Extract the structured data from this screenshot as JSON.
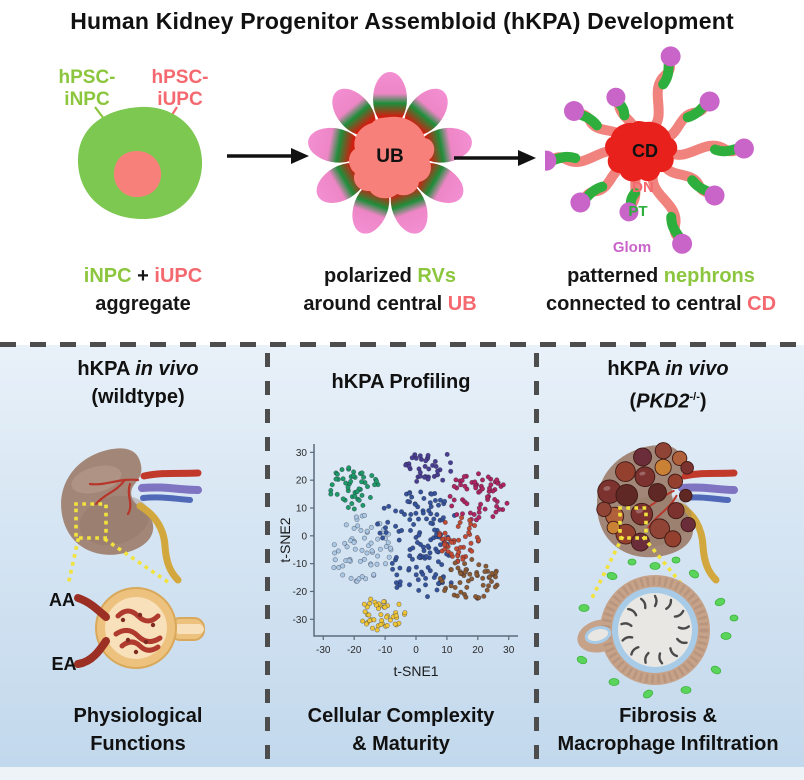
{
  "title": "Human Kidney Progenitor Assembloid (hKPA) Development",
  "top": {
    "stage1": {
      "inpc_line1": "hPSC-",
      "inpc_line2": "iNPC",
      "iupc_line1": "hPSC-",
      "iupc_line2": "iUPC"
    },
    "stage2": {
      "ub_label": "UB"
    },
    "stage3": {
      "cd_label": "CD",
      "dn_label": "DN",
      "pt_label": "PT",
      "glom_label": "Glom"
    },
    "caption1": {
      "green": "iNPC",
      "plus": " + ",
      "salmon": "iUPC",
      "line2": "aggregate"
    },
    "caption2": {
      "black1": "polarized ",
      "green": "RVs",
      "black2": "around central ",
      "red": "UB"
    },
    "caption3": {
      "black1": "patterned ",
      "green": "nephrons",
      "black2": "connected to central ",
      "red": "CD"
    }
  },
  "bottom": {
    "panel1": {
      "header_pre": "hKPA ",
      "header_italic": "in vivo",
      "header_line2": "(wildtype)",
      "aa_label": "AA",
      "ea_label": "EA",
      "caption_line1": "Physiological",
      "caption_line2": "Functions"
    },
    "panel2": {
      "header": "hKPA Profiling",
      "caption_line1": "Cellular Complexity",
      "caption_line2": "& Maturity"
    },
    "panel3": {
      "header_pre": "hKPA ",
      "header_italic": "in vivo",
      "header_paren_open": "(",
      "header_gene": "PKD2",
      "header_sup": "-/-",
      "header_paren_close": ")",
      "caption_line1": "Fibrosis &",
      "caption_line2": "Macrophage Infiltration"
    }
  },
  "chart_data": {
    "type": "scatter",
    "xlabel": "t-SNE1",
    "ylabel": "t-SNE2",
    "xlim": [
      -33,
      33
    ],
    "ylim": [
      -36,
      33
    ],
    "xticks": [
      -30,
      -20,
      -10,
      0,
      10,
      20,
      30
    ],
    "yticks": [
      -30,
      -20,
      -10,
      0,
      10,
      20,
      30
    ],
    "grid": false,
    "legend": "none",
    "clusters": [
      {
        "name": "teal",
        "color": "#1d9a68",
        "center": [
          -20,
          17
        ],
        "spread": [
          5.0,
          4.0
        ],
        "n": 48,
        "seed": 11
      },
      {
        "name": "light-blue",
        "color": "#abc9e5",
        "center": [
          -18,
          -4.5
        ],
        "spread": [
          5.5,
          6.5
        ],
        "n": 65,
        "seed": 22
      },
      {
        "name": "navy-upper",
        "color": "#35549b",
        "center": [
          0.5,
          4
        ],
        "spread": [
          7.0,
          6.5
        ],
        "n": 80,
        "seed": 33
      },
      {
        "name": "navy-lower",
        "color": "#35549b",
        "center": [
          3,
          -13
        ],
        "spread": [
          6.0,
          5.0
        ],
        "n": 50,
        "seed": 44
      },
      {
        "name": "indigo",
        "color": "#4a3e92",
        "center": [
          4,
          25
        ],
        "spread": [
          4.5,
          3.2
        ],
        "n": 36,
        "seed": 55
      },
      {
        "name": "crimson",
        "color": "#b02560",
        "center": [
          20,
          14
        ],
        "spread": [
          5.5,
          4.5
        ],
        "n": 62,
        "seed": 66
      },
      {
        "name": "red-orange",
        "color": "#c24b33",
        "center": [
          14,
          -1
        ],
        "spread": [
          3.5,
          4.5
        ],
        "n": 48,
        "seed": 77
      },
      {
        "name": "brown",
        "color": "#8a5a32",
        "center": [
          17,
          -16
        ],
        "spread": [
          5.5,
          4.0
        ],
        "n": 55,
        "seed": 88
      },
      {
        "name": "yellow",
        "color": "#f0c636",
        "center": [
          -11,
          -28
        ],
        "spread": [
          4.0,
          3.2
        ],
        "n": 45,
        "seed": 99
      }
    ]
  },
  "colors": {
    "green_text": "#8cc63e",
    "salmon_text": "#f4696f",
    "red_bright": "#e8211d",
    "blob_green": "#7dc850",
    "blob_salmon": "#f8807a",
    "petal_pink": "#f28fd2",
    "petal_green": "#1e8e3a",
    "petal_red": "#e02315",
    "arm_salmon": "#f0837d",
    "pt_green": "#2eae3c",
    "orchid": "#c965c9",
    "kidney_body": "#a28778",
    "artery_red": "#c0392b",
    "vein_purple": "#7f74c2",
    "vein_blue": "#4f69b8",
    "ureter_yellow": "#d2a73d",
    "dotted_yellow": "#f2e23c",
    "capsule_tan": "#ecc27e",
    "capsule_inner": "#f7e0ba",
    "tuft_red": "#b03a2e",
    "arteriole_dark": "#9c2f23",
    "cyst_wall": "#c6a289",
    "cyst_blue": "#a8cbe8",
    "cyst_interior": "#e9e7e3",
    "macrophage_green": "#5ad45a",
    "bg_top": "#e9f1f9",
    "bg_bottom": "#c2d8ec",
    "dash_gray": "#4d4d4d",
    "axis_color": "#5b6b7c",
    "tick_color": "#2a2a2a"
  }
}
